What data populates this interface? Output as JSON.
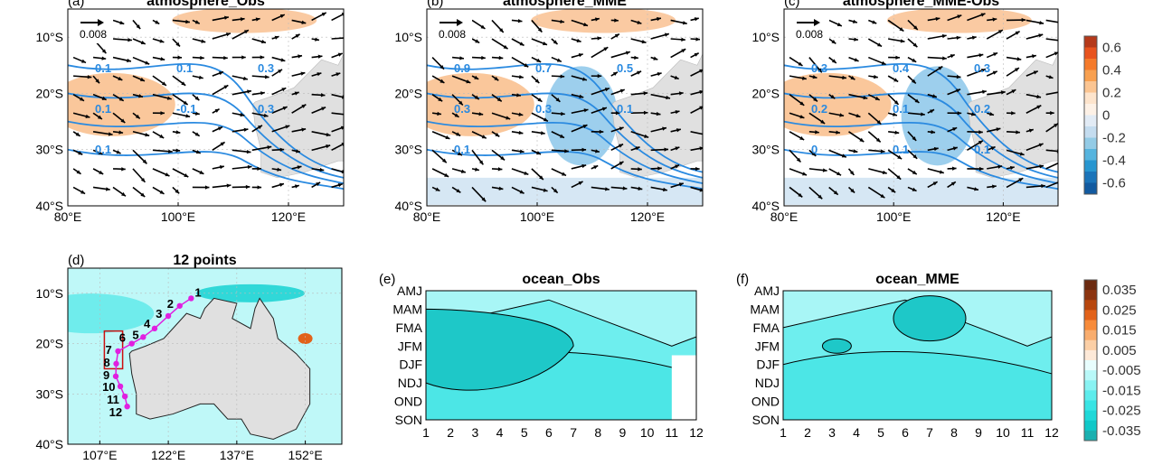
{
  "chart_data": [
    {
      "type": "map",
      "panel": "(a)",
      "title": "atmosphere_Obs",
      "lon_ticks": [
        "80°E",
        "100°E",
        "120°E"
      ],
      "lat_ticks": [
        "10°S",
        "20°S",
        "30°S",
        "40°S"
      ],
      "lon_range": [
        80,
        130
      ],
      "lat_range": [
        -40,
        -5
      ],
      "reference_vector": "0.008",
      "contour_labels": [
        "0.1",
        "0.1",
        "0.3",
        "0.1",
        "-0.1",
        "0.3",
        "0.1"
      ]
    },
    {
      "type": "map",
      "panel": "(b)",
      "title": "atmosphere_MME",
      "lon_ticks": [
        "80°E",
        "100°E",
        "120°E"
      ],
      "lat_ticks": [
        "10°S",
        "20°S",
        "30°S",
        "40°S"
      ],
      "lon_range": [
        80,
        130
      ],
      "lat_range": [
        -40,
        -5
      ],
      "reference_vector": "0.008",
      "contour_labels": [
        "0.9",
        "0.7",
        "0.5",
        "0.3",
        "0.3",
        "0.1",
        "0.1"
      ]
    },
    {
      "type": "map",
      "panel": "(c)",
      "title": "atmosphere_MME-Obs",
      "lon_ticks": [
        "80°E",
        "100°E",
        "120°E"
      ],
      "lat_ticks": [
        "10°S",
        "20°S",
        "30°S",
        "40°S"
      ],
      "lon_range": [
        80,
        130
      ],
      "lat_range": [
        -40,
        -5
      ],
      "reference_vector": "0.008",
      "contour_labels": [
        "0.3",
        "0.4",
        "0.3",
        "0.2",
        "0.1",
        "0.2",
        "0",
        "0.1",
        "0.1"
      ]
    },
    {
      "type": "map",
      "panel": "(d)",
      "title": "12 points",
      "lon_ticks": [
        "107°E",
        "122°E",
        "137°E",
        "152°E"
      ],
      "lat_ticks": [
        "10°S",
        "20°S",
        "30°S",
        "40°S"
      ],
      "lon_range": [
        100,
        160
      ],
      "lat_range": [
        -40,
        -5
      ],
      "points": [
        "1",
        "2",
        "3",
        "4",
        "5",
        "6",
        "7",
        "8",
        "9",
        "10",
        "11",
        "12"
      ]
    },
    {
      "type": "heatmap",
      "panel": "(e)",
      "title": "ocean_Obs",
      "x": [
        "1",
        "2",
        "3",
        "4",
        "5",
        "6",
        "7",
        "8",
        "9",
        "10",
        "11",
        "12"
      ],
      "y": [
        "AMJ",
        "MAM",
        "FMA",
        "JFM",
        "DJF",
        "NDJ",
        "OND",
        "SON"
      ]
    },
    {
      "type": "heatmap",
      "panel": "(f)",
      "title": "ocean_MME",
      "x": [
        "1",
        "2",
        "3",
        "4",
        "5",
        "6",
        "7",
        "8",
        "9",
        "10",
        "11",
        "12"
      ],
      "y": [
        "AMJ",
        "MAM",
        "FMA",
        "JFM",
        "DJF",
        "NDJ",
        "OND",
        "SON"
      ]
    }
  ],
  "colorbars": {
    "atmosphere": {
      "labels": [
        "0.6",
        "0.4",
        "0.2",
        "0",
        "-0.2",
        "-0.4",
        "-0.6"
      ],
      "colors": [
        "#b5391a",
        "#e8531e",
        "#f57a2a",
        "#f8a050",
        "#fbc592",
        "#fde4cc",
        "#fdf1e6",
        "#e2ebf5",
        "#c4dcef",
        "#93cbe6",
        "#56b4de",
        "#2796d0",
        "#1b74b9",
        "#125aa0"
      ]
    },
    "ocean": {
      "labels": [
        "0.035",
        "0.025",
        "0.015",
        "0.005",
        "-0.005",
        "-0.015",
        "-0.025",
        "-0.035"
      ],
      "colors": [
        "#6b2a10",
        "#8c3410",
        "#b8470e",
        "#e2621a",
        "#f78b3a",
        "#f9ad6e",
        "#fbcfa6",
        "#fde9d8",
        "#e8fdfd",
        "#b8f8f8",
        "#88f2f2",
        "#5cecec",
        "#38e4e4",
        "#1fd8d8",
        "#10c8c8",
        "#1ab0b0"
      ]
    }
  },
  "colors": {
    "contour": "#2a8ae0",
    "land": "#e0e0e0",
    "warm": "#f8b47a",
    "cool": "#8cc7ea",
    "ocean_fill": "#5ef0f0",
    "ocean_dark": "#20c8c8",
    "point": "#e020e0",
    "box": "#cc1010"
  }
}
